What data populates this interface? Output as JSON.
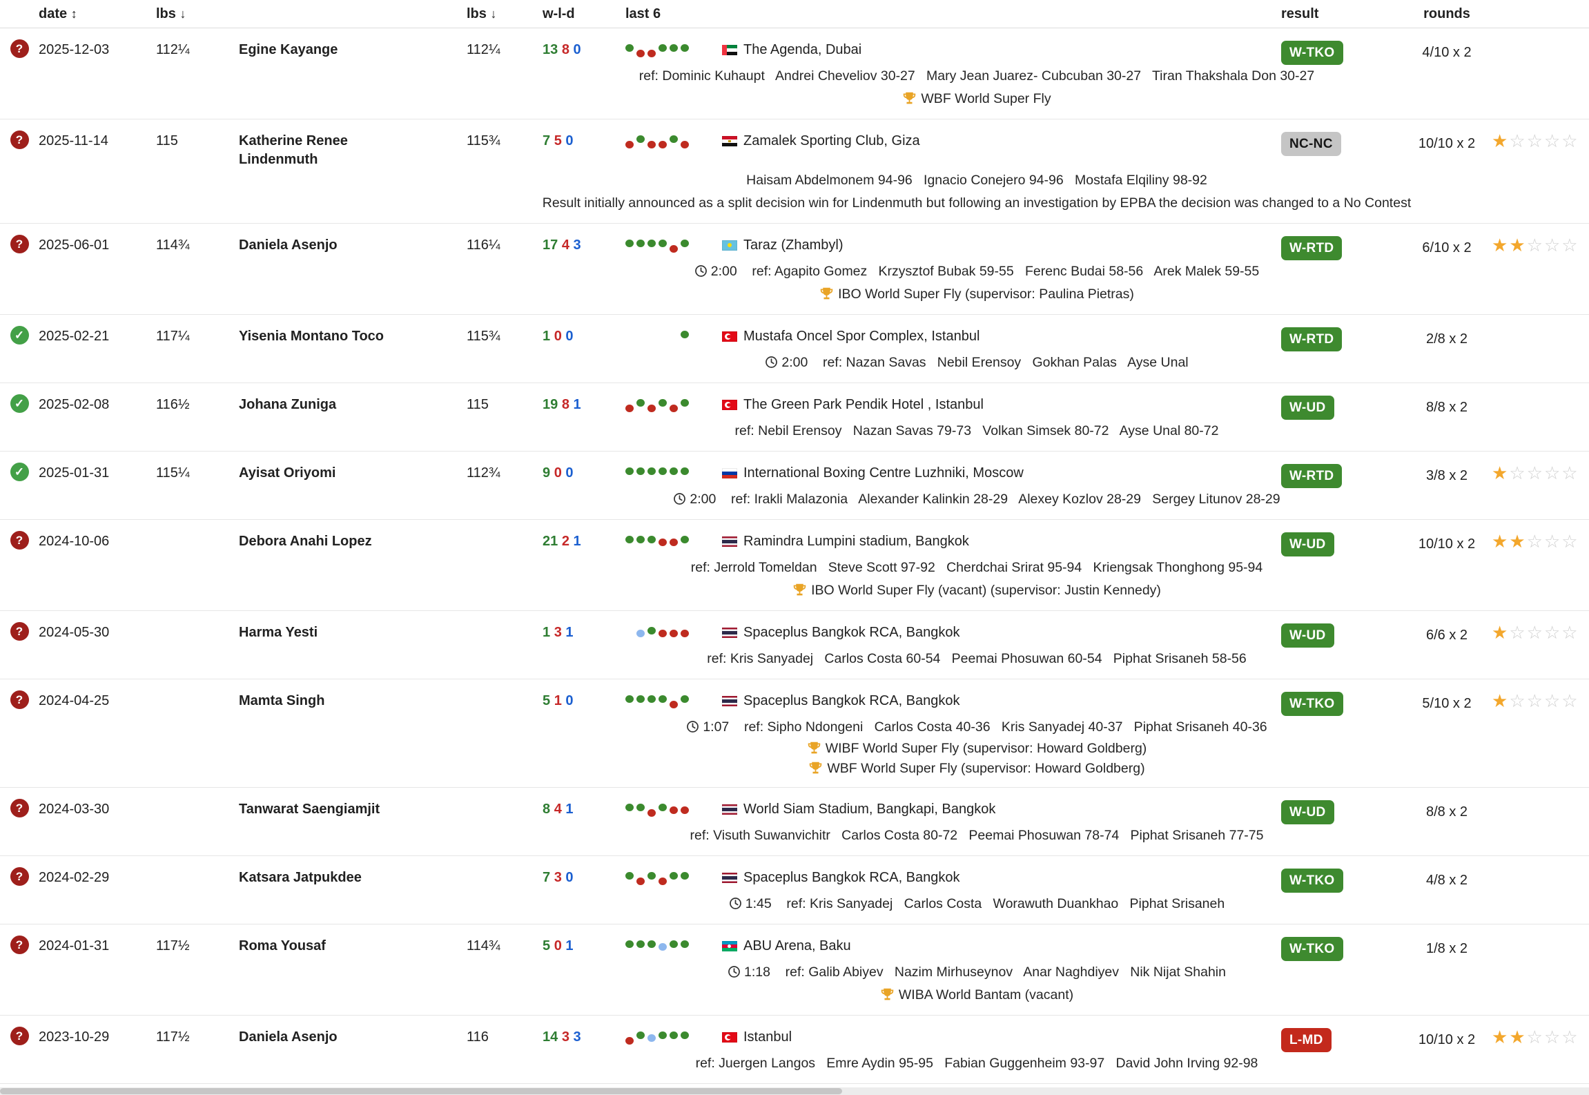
{
  "header": {
    "date": "date",
    "date_sort": "↕",
    "lbs1": "lbs",
    "lbs1_sort": "↓",
    "lbs2": "lbs",
    "lbs2_sort": "↓",
    "wld": "w-l-d",
    "last6": "last 6",
    "result": "result",
    "rounds": "rounds"
  },
  "colors": {
    "win_badge": "#3e8a2f",
    "loss_badge": "#c3291c",
    "nc_badge": "#c5c5c5",
    "wins_text": "#2e7d32",
    "losses_text": "#c62828",
    "draws_text": "#1b5fd0",
    "dot_green": "#3b8a2e",
    "dot_red": "#bf2b1f",
    "dot_blue": "#8db7ee",
    "star_filled": "#f3a72c",
    "status_unknown": "#9e1f1b",
    "status_verified": "#43a047"
  },
  "rows": [
    {
      "status": "unknown",
      "date": "2025-12-03",
      "lbs1": "112¼",
      "name": "Egine Kayange",
      "lbs2": "112¼",
      "w": "13",
      "l": "8",
      "d": "0",
      "last6": [
        {
          "c": "g",
          "o": 0
        },
        {
          "c": "r",
          "o": 2
        },
        {
          "c": "r",
          "o": 2
        },
        {
          "c": "g",
          "o": 0
        },
        {
          "c": "g",
          "o": 0
        },
        {
          "c": "g",
          "o": 0
        }
      ],
      "flag": "ae",
      "location": "The Agenda, Dubai",
      "result": {
        "label": "W-TKO",
        "type": "win"
      },
      "rounds": "4/10 x 2",
      "stars": 0,
      "details": [
        {
          "text": "ref: Dominic Kuhaupt   Andrei Cheveliov 30-27   Mary Jean Juarez- Cubcuban 30-27   Tiran Thakshala Don 30-27"
        },
        {
          "trophy": true,
          "text": "WBF World Super Fly"
        }
      ]
    },
    {
      "status": "unknown",
      "date": "2025-11-14",
      "lbs1": "115",
      "name": "Katherine Renee Lindenmuth",
      "lbs2": "115¾",
      "w": "7",
      "l": "5",
      "d": "0",
      "last6": [
        {
          "c": "r",
          "o": 2
        },
        {
          "c": "g",
          "o": 0
        },
        {
          "c": "r",
          "o": 2
        },
        {
          "c": "r",
          "o": 2
        },
        {
          "c": "g",
          "o": 0
        },
        {
          "c": "r",
          "o": 2
        }
      ],
      "flag": "eg",
      "location": "Zamalek Sporting Club, Giza",
      "result": {
        "label": "NC-NC",
        "type": "nc"
      },
      "rounds": "10/10 x 2",
      "stars": 1,
      "details": [
        {
          "text": "Haisam Abdelmonem 94-96   Ignacio Conejero 94-96   Mostafa Elqiliny 98-92"
        },
        {
          "note": true,
          "text": "Result initially announced as a split decision win for Lindenmuth but following an investigation by EPBA the decision was changed to a No Contest"
        }
      ]
    },
    {
      "status": "unknown",
      "date": "2025-06-01",
      "lbs1": "114¾",
      "name": "Daniela Asenjo",
      "lbs2": "116¼",
      "w": "17",
      "l": "4",
      "d": "3",
      "last6": [
        {
          "c": "g",
          "o": 0
        },
        {
          "c": "g",
          "o": 0
        },
        {
          "c": "g",
          "o": 0
        },
        {
          "c": "g",
          "o": 0
        },
        {
          "c": "r",
          "o": 2
        },
        {
          "c": "g",
          "o": 0
        }
      ],
      "flag": "kz",
      "location": "Taraz (Zhambyl)",
      "result": {
        "label": "W-RTD",
        "type": "win"
      },
      "rounds": "6/10 x 2",
      "stars": 2,
      "details": [
        {
          "time": "2:00",
          "text": "ref: Agapito Gomez   Krzysztof Bubak 59-55   Ferenc Budai 58-56   Arek Malek 59-55"
        },
        {
          "trophy": true,
          "text": "IBO World Super Fly (supervisor: Paulina Pietras)"
        }
      ]
    },
    {
      "status": "verified",
      "date": "2025-02-21",
      "lbs1": "117¼",
      "name": "Yisenia Montano Toco",
      "lbs2": "115¾",
      "w": "1",
      "l": "0",
      "d": "0",
      "last6": [
        null,
        null,
        null,
        null,
        null,
        {
          "c": "g",
          "o": 0
        }
      ],
      "flag": "tr",
      "location": "Mustafa Oncel Spor Complex, Istanbul",
      "result": {
        "label": "W-RTD",
        "type": "win"
      },
      "rounds": "2/8 x 2",
      "stars": 0,
      "details": [
        {
          "time": "2:00",
          "text": "ref: Nazan Savas   Nebil Erensoy   Gokhan Palas   Ayse Unal"
        }
      ]
    },
    {
      "status": "verified",
      "date": "2025-02-08",
      "lbs1": "116½",
      "name": "Johana Zuniga",
      "lbs2": "115",
      "w": "19",
      "l": "8",
      "d": "1",
      "last6": [
        {
          "c": "r",
          "o": 2
        },
        {
          "c": "g",
          "o": 0
        },
        {
          "c": "r",
          "o": 2
        },
        {
          "c": "g",
          "o": 0
        },
        {
          "c": "r",
          "o": 2
        },
        {
          "c": "g",
          "o": 0
        }
      ],
      "flag": "tr",
      "location": "The Green Park Pendik Hotel , Istanbul",
      "result": {
        "label": "W-UD",
        "type": "win"
      },
      "rounds": "8/8 x 2",
      "stars": 0,
      "details": [
        {
          "text": "ref: Nebil Erensoy   Nazan Savas 79-73   Volkan Simsek 80-72   Ayse Unal 80-72"
        }
      ]
    },
    {
      "status": "verified",
      "date": "2025-01-31",
      "lbs1": "115¼",
      "name": "Ayisat Oriyomi",
      "lbs2": "112¾",
      "w": "9",
      "l": "0",
      "d": "0",
      "last6": [
        {
          "c": "g",
          "o": 0
        },
        {
          "c": "g",
          "o": 0
        },
        {
          "c": "g",
          "o": 0
        },
        {
          "c": "g",
          "o": 0
        },
        {
          "c": "g",
          "o": 0
        },
        {
          "c": "g",
          "o": 0
        }
      ],
      "flag": "ru",
      "location": "International Boxing Centre Luzhniki, Moscow",
      "result": {
        "label": "W-RTD",
        "type": "win"
      },
      "rounds": "3/8 x 2",
      "stars": 1,
      "details": [
        {
          "time": "2:00",
          "text": "ref: Irakli Malazonia   Alexander Kalinkin 28-29   Alexey Kozlov 28-29   Sergey Litunov 28-29"
        }
      ]
    },
    {
      "status": "unknown",
      "date": "2024-10-06",
      "lbs1": "",
      "name": "Debora Anahi Lopez",
      "lbs2": "",
      "w": "21",
      "l": "2",
      "d": "1",
      "last6": [
        {
          "c": "g",
          "o": 0
        },
        {
          "c": "g",
          "o": 0
        },
        {
          "c": "g",
          "o": 0
        },
        {
          "c": "r",
          "o": 1
        },
        {
          "c": "r",
          "o": 1
        },
        {
          "c": "g",
          "o": 0
        }
      ],
      "flag": "th",
      "location": "Ramindra Lumpini stadium, Bangkok",
      "result": {
        "label": "W-UD",
        "type": "win"
      },
      "rounds": "10/10 x 2",
      "stars": 2,
      "details": [
        {
          "text": "ref: Jerrold Tomeldan   Steve Scott 97-92   Cherdchai Srirat 95-94   Kriengsak Thonghong 95-94"
        },
        {
          "trophy": true,
          "text": "IBO World Super Fly (vacant) (supervisor: Justin Kennedy)"
        }
      ]
    },
    {
      "status": "unknown",
      "date": "2024-05-30",
      "lbs1": "",
      "name": "Harma Yesti",
      "lbs2": "",
      "w": "1",
      "l": "3",
      "d": "1",
      "last6": [
        null,
        {
          "c": "b",
          "o": 1
        },
        {
          "c": "g",
          "o": 0
        },
        {
          "c": "r",
          "o": 1
        },
        {
          "c": "r",
          "o": 1
        },
        {
          "c": "r",
          "o": 1
        }
      ],
      "flag": "th",
      "location": "Spaceplus Bangkok RCA, Bangkok",
      "result": {
        "label": "W-UD",
        "type": "win"
      },
      "rounds": "6/6 x 2",
      "stars": 1,
      "details": [
        {
          "text": "ref: Kris Sanyadej   Carlos Costa 60-54   Peemai Phosuwan 60-54   Piphat Srisaneh 58-56"
        }
      ]
    },
    {
      "status": "unknown",
      "date": "2024-04-25",
      "lbs1": "",
      "name": "Mamta Singh",
      "lbs2": "",
      "w": "5",
      "l": "1",
      "d": "0",
      "last6": [
        {
          "c": "g",
          "o": 0
        },
        {
          "c": "g",
          "o": 0
        },
        {
          "c": "g",
          "o": 0
        },
        {
          "c": "g",
          "o": 0
        },
        {
          "c": "r",
          "o": 2
        },
        {
          "c": "g",
          "o": 0
        }
      ],
      "flag": "th",
      "location": "Spaceplus Bangkok RCA, Bangkok",
      "result": {
        "label": "W-TKO",
        "type": "win"
      },
      "rounds": "5/10 x 2",
      "stars": 1,
      "details": [
        {
          "time": "1:07",
          "text": "ref: Sipho Ndongeni   Carlos Costa 40-36   Kris Sanyadej 40-37   Piphat Srisaneh 40-36"
        },
        {
          "trophy": true,
          "tight": true,
          "text": "WIBF World Super Fly (supervisor: Howard Goldberg)"
        },
        {
          "trophy": true,
          "tight": true,
          "text": "WBF World Super Fly (supervisor: Howard Goldberg)"
        }
      ]
    },
    {
      "status": "unknown",
      "date": "2024-03-30",
      "lbs1": "",
      "name": "Tanwarat Saengiamjit",
      "lbs2": "",
      "w": "8",
      "l": "4",
      "d": "1",
      "last6": [
        {
          "c": "g",
          "o": 0
        },
        {
          "c": "g",
          "o": 0
        },
        {
          "c": "r",
          "o": 2
        },
        {
          "c": "g",
          "o": 0
        },
        {
          "c": "r",
          "o": 1
        },
        {
          "c": "r",
          "o": 1
        }
      ],
      "flag": "th",
      "location": "World Siam Stadium, Bangkapi, Bangkok",
      "result": {
        "label": "W-UD",
        "type": "win"
      },
      "rounds": "8/8 x 2",
      "stars": 0,
      "details": [
        {
          "text": "ref: Visuth Suwanvichitr   Carlos Costa 80-72   Peemai Phosuwan 78-74   Piphat Srisaneh 77-75"
        }
      ]
    },
    {
      "status": "unknown",
      "date": "2024-02-29",
      "lbs1": "",
      "name": "Katsara Jatpukdee",
      "lbs2": "",
      "w": "7",
      "l": "3",
      "d": "0",
      "last6": [
        {
          "c": "g",
          "o": 0
        },
        {
          "c": "r",
          "o": 2
        },
        {
          "c": "g",
          "o": 0
        },
        {
          "c": "r",
          "o": 2
        },
        {
          "c": "g",
          "o": 0
        },
        {
          "c": "g",
          "o": 0
        }
      ],
      "flag": "th",
      "location": "Spaceplus Bangkok RCA, Bangkok",
      "result": {
        "label": "W-TKO",
        "type": "win"
      },
      "rounds": "4/8 x 2",
      "stars": 0,
      "details": [
        {
          "time": "1:45",
          "text": "ref: Kris Sanyadej   Carlos Costa   Worawuth Duankhao   Piphat Srisaneh"
        }
      ]
    },
    {
      "status": "unknown",
      "date": "2024-01-31",
      "lbs1": "117½",
      "name": "Roma Yousaf",
      "lbs2": "114¾",
      "w": "5",
      "l": "0",
      "d": "1",
      "last6": [
        {
          "c": "g",
          "o": 0
        },
        {
          "c": "g",
          "o": 0
        },
        {
          "c": "g",
          "o": 0
        },
        {
          "c": "b",
          "o": 1
        },
        {
          "c": "g",
          "o": 0
        },
        {
          "c": "g",
          "o": 0
        }
      ],
      "flag": "az",
      "location": "ABU Arena, Baku",
      "result": {
        "label": "W-TKO",
        "type": "win"
      },
      "rounds": "1/8 x 2",
      "stars": 0,
      "details": [
        {
          "time": "1:18",
          "text": "ref: Galib Abiyev   Nazim Mirhuseynov   Anar Naghdiyev   Nik Nijat Shahin"
        },
        {
          "trophy": true,
          "text": "WIBA World Bantam (vacant)"
        }
      ]
    },
    {
      "status": "unknown",
      "date": "2023-10-29",
      "lbs1": "117½",
      "name": "Daniela Asenjo",
      "lbs2": "116",
      "w": "14",
      "l": "3",
      "d": "3",
      "last6": [
        {
          "c": "r",
          "o": 2
        },
        {
          "c": "g",
          "o": 0
        },
        {
          "c": "b",
          "o": 1
        },
        {
          "c": "g",
          "o": 0
        },
        {
          "c": "g",
          "o": 0
        },
        {
          "c": "g",
          "o": 0
        }
      ],
      "flag": "tr",
      "location": "Istanbul",
      "result": {
        "label": "L-MD",
        "type": "loss"
      },
      "rounds": "10/10 x 2",
      "stars": 2,
      "details": [
        {
          "text": "ref: Juergen Langos   Emre Aydin 95-95   Fabian Guggenheim 93-97   David John Irving 92-98"
        }
      ]
    }
  ]
}
